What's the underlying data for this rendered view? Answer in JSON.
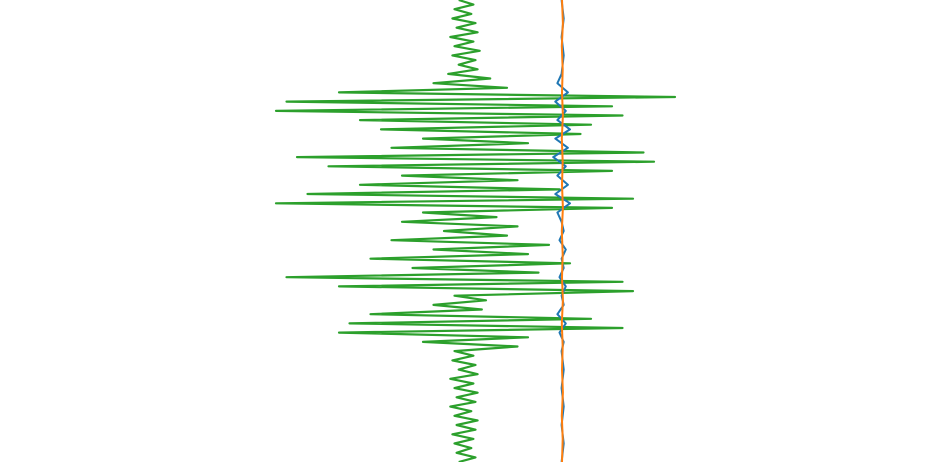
{
  "chart_data": {
    "type": "line",
    "orientation": "vertical-traces",
    "title": "",
    "xlabel": "",
    "ylabel": "",
    "axes_visible": false,
    "grid": false,
    "legend": "none",
    "xlim": [
      -1.0,
      1.0
    ],
    "ylim": [
      0,
      100
    ],
    "series": [
      {
        "color": "#2ca02c",
        "y": [
          0,
          1,
          2,
          3,
          4,
          5,
          6,
          7,
          8,
          9,
          10,
          11,
          12,
          13,
          14,
          15,
          16,
          17,
          18,
          19,
          20,
          21,
          22,
          23,
          24,
          25,
          26,
          27,
          28,
          29,
          30,
          31,
          32,
          33,
          34,
          35,
          36,
          37,
          38,
          39,
          40,
          41,
          42,
          43,
          44,
          45,
          46,
          47,
          48,
          49,
          50,
          51,
          52,
          53,
          54,
          55,
          56,
          57,
          58,
          59,
          60,
          61,
          62,
          63,
          64,
          65,
          66,
          67,
          68,
          69,
          70,
          71,
          72,
          73,
          74,
          75,
          76,
          77,
          78,
          79,
          80,
          81,
          82,
          83,
          84,
          85,
          86,
          87,
          88,
          89,
          90,
          91,
          92,
          93,
          94,
          95,
          96,
          97,
          98,
          99,
          100
        ],
        "x": [
          -0.03,
          0.04,
          -0.05,
          0.03,
          -0.06,
          0.05,
          -0.04,
          0.06,
          -0.07,
          0.04,
          -0.05,
          0.07,
          -0.06,
          0.05,
          -0.03,
          0.06,
          -0.08,
          0.12,
          -0.15,
          0.2,
          -0.6,
          1.0,
          -0.85,
          0.7,
          -0.9,
          0.75,
          -0.5,
          0.6,
          -0.4,
          0.55,
          -0.2,
          0.3,
          -0.35,
          0.85,
          -0.8,
          0.9,
          -0.65,
          0.7,
          -0.3,
          0.25,
          -0.5,
          0.45,
          -0.75,
          0.8,
          -0.9,
          0.7,
          -0.2,
          0.15,
          -0.3,
          0.25,
          -0.1,
          0.2,
          -0.35,
          0.4,
          -0.15,
          0.3,
          -0.45,
          0.5,
          -0.25,
          0.35,
          -0.85,
          0.75,
          -0.6,
          0.8,
          -0.05,
          0.1,
          -0.15,
          0.08,
          -0.45,
          0.6,
          -0.55,
          0.75,
          -0.6,
          0.3,
          -0.2,
          0.25,
          -0.05,
          0.04,
          -0.06,
          0.05,
          -0.03,
          0.06,
          -0.07,
          0.04,
          -0.05,
          0.06,
          -0.04,
          0.05,
          -0.07,
          0.03,
          -0.05,
          0.06,
          -0.04,
          0.05,
          -0.06,
          0.04,
          -0.05,
          0.03,
          -0.04,
          0.05,
          -0.03
        ]
      },
      {
        "color": "#1f77b4",
        "y": [
          0,
          4,
          8,
          12,
          16,
          18,
          20,
          22,
          24,
          26,
          28,
          30,
          32,
          34,
          36,
          38,
          40,
          42,
          44,
          46,
          48,
          50,
          52,
          54,
          56,
          58,
          60,
          62,
          64,
          66,
          68,
          70,
          72,
          74,
          76,
          80,
          84,
          88,
          92,
          96,
          100
        ],
        "x": [
          0.46,
          0.47,
          0.46,
          0.47,
          0.46,
          0.44,
          0.49,
          0.43,
          0.48,
          0.44,
          0.5,
          0.43,
          0.49,
          0.42,
          0.48,
          0.44,
          0.49,
          0.43,
          0.5,
          0.44,
          0.46,
          0.47,
          0.45,
          0.48,
          0.46,
          0.47,
          0.45,
          0.48,
          0.46,
          0.47,
          0.44,
          0.48,
          0.45,
          0.47,
          0.46,
          0.47,
          0.46,
          0.47,
          0.46,
          0.47,
          0.46
        ]
      },
      {
        "color": "#ff7f0e",
        "y": [
          0,
          5,
          10,
          15,
          20,
          25,
          30,
          35,
          40,
          45,
          50,
          55,
          60,
          65,
          70,
          75,
          80,
          85,
          90,
          95,
          100
        ],
        "x": [
          0.462,
          0.466,
          0.461,
          0.465,
          0.462,
          0.466,
          0.461,
          0.465,
          0.462,
          0.466,
          0.461,
          0.465,
          0.462,
          0.466,
          0.461,
          0.465,
          0.462,
          0.466,
          0.461,
          0.465,
          0.462
        ]
      }
    ]
  }
}
